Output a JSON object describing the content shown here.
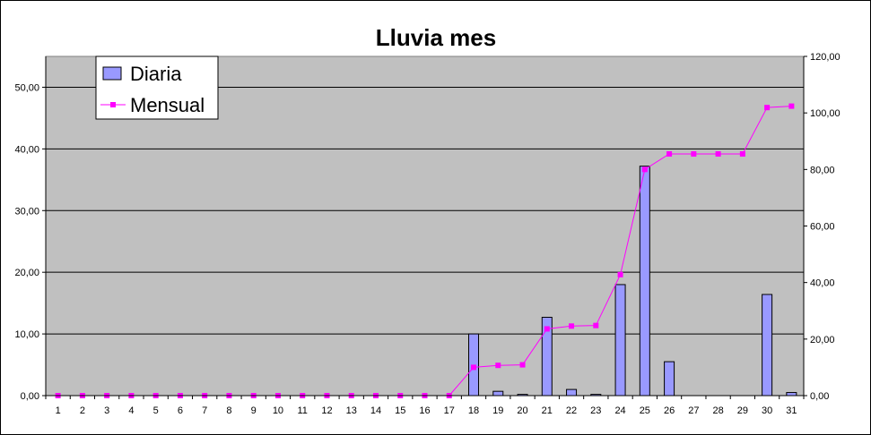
{
  "chart_data": {
    "type": "bar+line",
    "title": "Lluvia mes",
    "categories": [
      "1",
      "2",
      "3",
      "4",
      "5",
      "6",
      "7",
      "8",
      "9",
      "10",
      "11",
      "12",
      "13",
      "14",
      "15",
      "16",
      "17",
      "18",
      "19",
      "20",
      "21",
      "22",
      "23",
      "24",
      "25",
      "26",
      "27",
      "28",
      "29",
      "30",
      "31"
    ],
    "series": [
      {
        "name": "Diaria",
        "type": "bar",
        "axis": "left",
        "color": "#9999ff",
        "values": [
          0,
          0,
          0,
          0,
          0,
          0,
          0,
          0,
          0,
          0,
          0,
          0,
          0,
          0,
          0,
          0,
          0,
          10.0,
          0.7,
          0.2,
          12.7,
          1.0,
          0.2,
          18.0,
          37.2,
          5.5,
          0,
          0,
          0,
          16.4,
          0.5
        ]
      },
      {
        "name": "Mensual",
        "type": "line",
        "axis": "right",
        "color": "#ff00ff",
        "values": [
          0,
          0,
          0,
          0,
          0,
          0,
          0,
          0,
          0,
          0,
          0,
          0,
          0,
          0,
          0,
          0,
          0,
          10.0,
          10.7,
          10.9,
          23.6,
          24.6,
          24.8,
          42.8,
          80.0,
          85.5,
          85.5,
          85.5,
          85.5,
          101.9,
          102.4
        ]
      }
    ],
    "y_left": {
      "range": [
        0,
        55
      ],
      "ticks": [
        "0,00",
        "10,00",
        "20,00",
        "30,00",
        "40,00",
        "50,00"
      ],
      "tick_values": [
        0,
        10,
        20,
        30,
        40,
        50
      ]
    },
    "y_right": {
      "range": [
        0,
        120
      ],
      "ticks": [
        "0,00",
        "20,00",
        "40,00",
        "60,00",
        "80,00",
        "100,00",
        "120,00"
      ],
      "tick_values": [
        0,
        20,
        40,
        60,
        80,
        100,
        120
      ]
    },
    "grid": true,
    "legend_position": "top-left",
    "plot_background": "#c0c0c0"
  }
}
